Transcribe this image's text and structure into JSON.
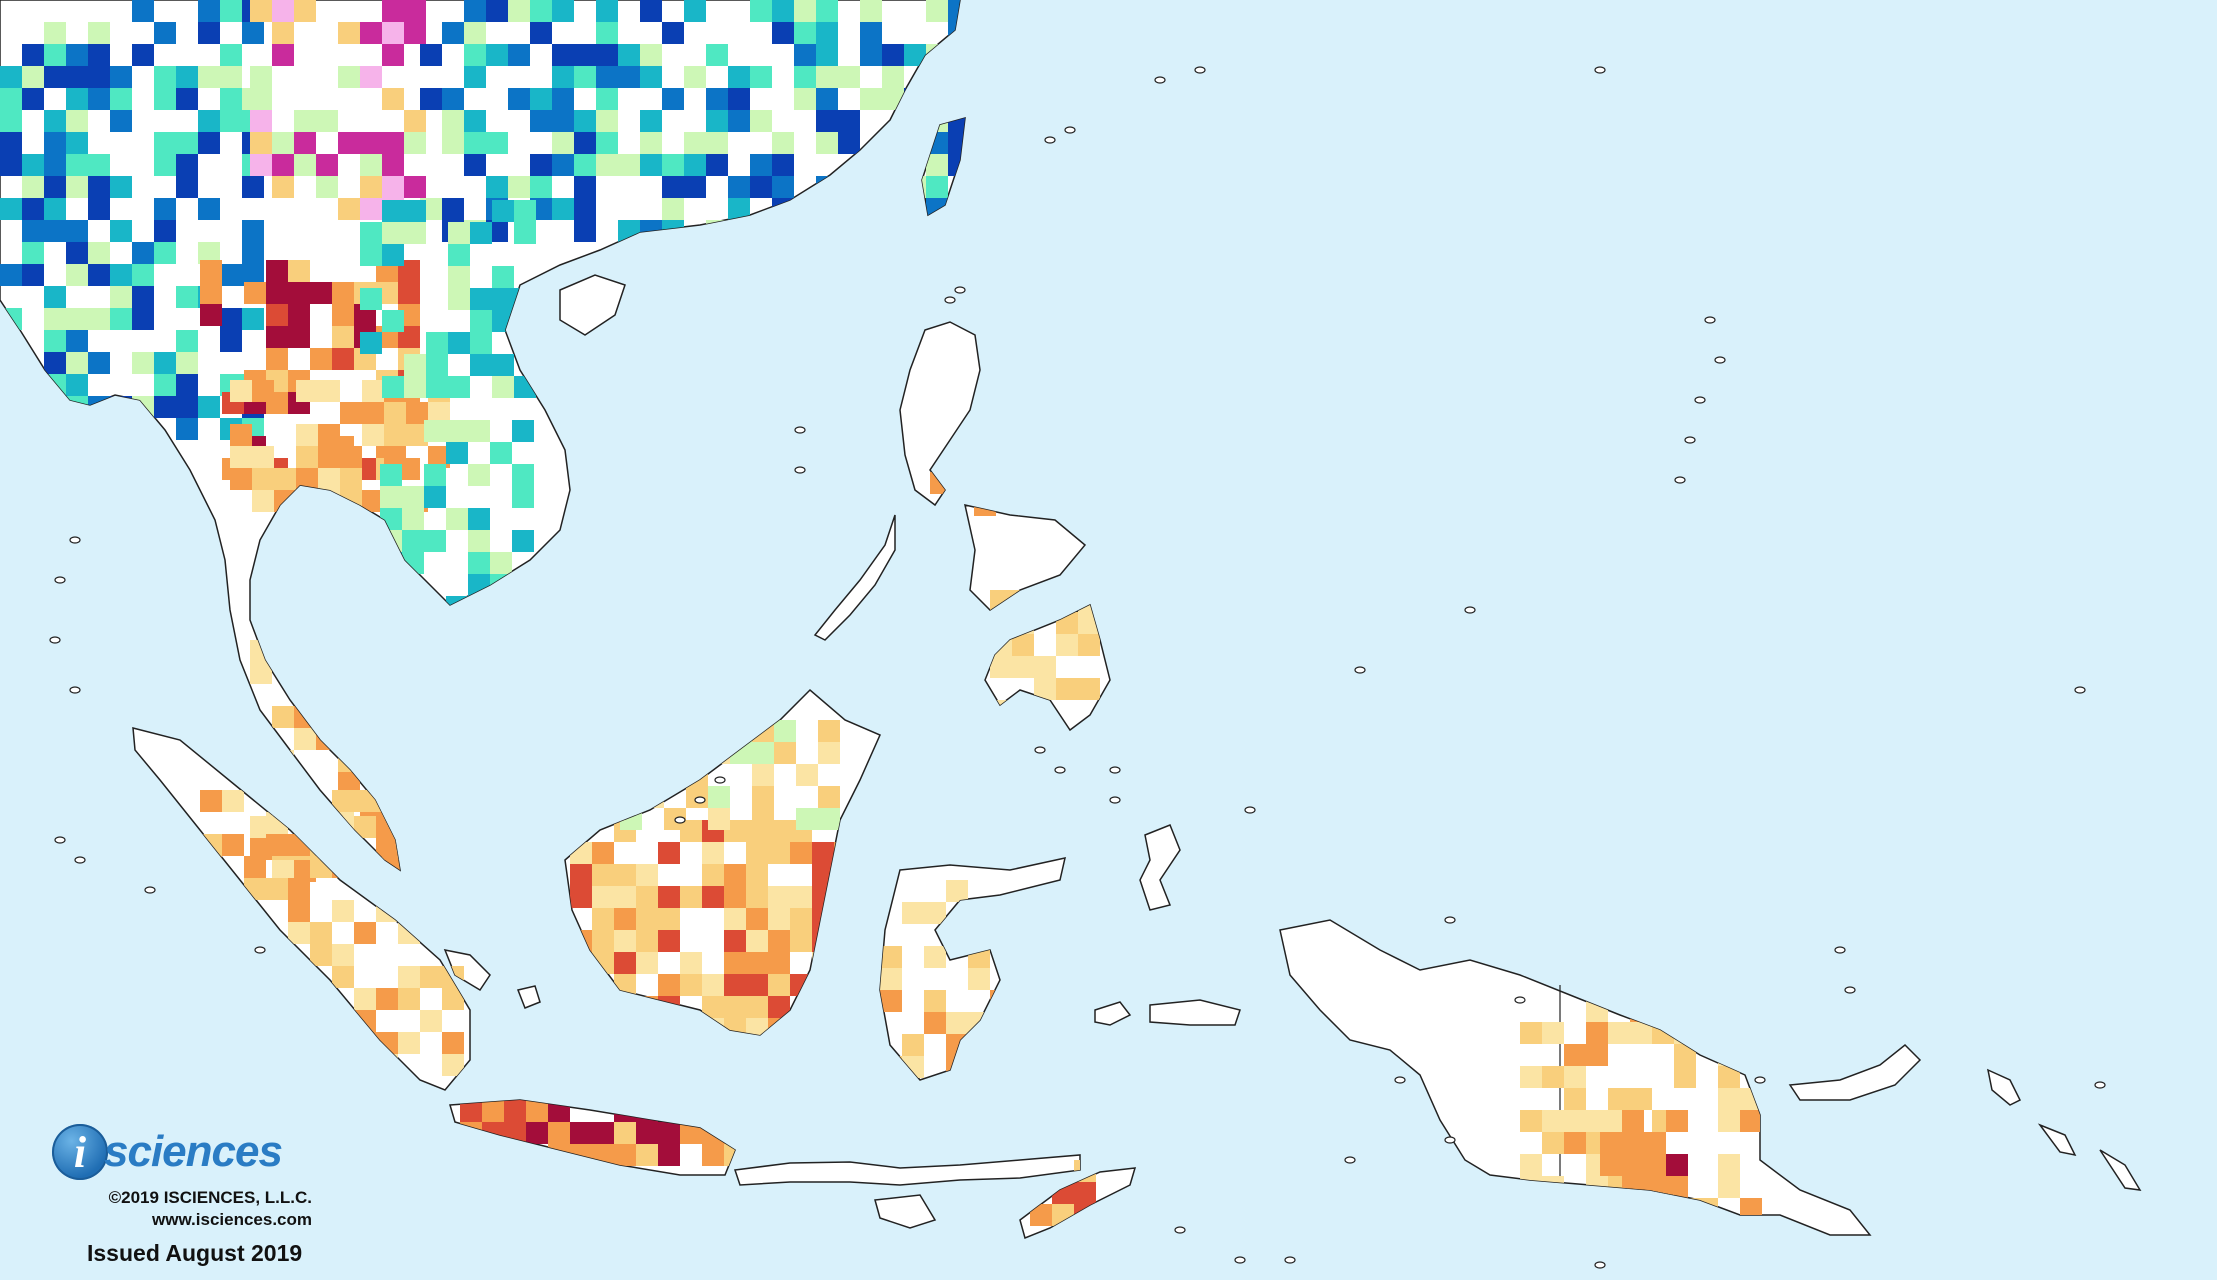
{
  "brand": {
    "logo_letter": "i",
    "name": "sciences",
    "copyright": "©2019 ISCIENCES, L.L.C.",
    "website": "www.isciences.com",
    "issued": "Issued August 2019"
  },
  "colors": {
    "ocean": "#d9f1fb",
    "land_normal": "#ffffff",
    "deficit_mild": "#fbe4a4",
    "deficit_moderate": "#f9cf7c",
    "deficit_severe": "#f59b4a",
    "deficit_extreme": "#dc4b35",
    "deficit_exceptional": "#a30d3a",
    "surplus_mild": "#cdf7b6",
    "surplus_moderate": "#4fe8c2",
    "surplus_severe": "#19b6c8",
    "surplus_extreme": "#0c74c6",
    "surplus_exceptional": "#0a3fb3",
    "both_mild": "#f6b3ea",
    "both_strong": "#c92b9c"
  }
}
